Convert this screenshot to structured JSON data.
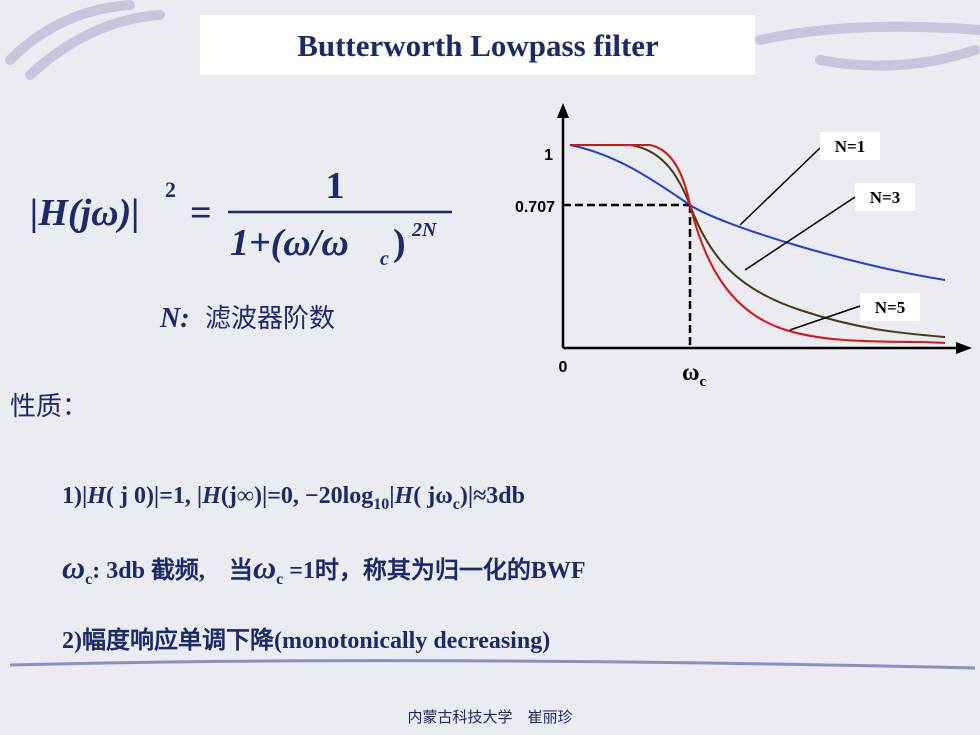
{
  "header": {
    "title": "Butterworth Lowpass filter"
  },
  "formula": {
    "lhs": "|H(jω)|",
    "power": "2",
    "equals": "=",
    "numerator": "1",
    "denominator": "1+(ω/ω",
    "denominator_sub": "c",
    "denominator_close": ")",
    "denominator_power": "2N"
  },
  "note": {
    "symbol": "N:",
    "text": "滤波器阶数"
  },
  "plot": {
    "y_top": "1",
    "y_mid": "0.707",
    "origin": "0",
    "x_mark": "ω",
    "x_mark_sub": "c",
    "labels": [
      "N=1",
      "N=3",
      "N=5"
    ]
  },
  "properties": {
    "heading": "性质：",
    "line1": [
      "1)|",
      "H",
      "( j 0)|=1,  |",
      "H",
      "(j∞)|=0, −20log",
      "10",
      "|",
      "H",
      "( jω",
      "c",
      ")|≈3db"
    ],
    "line2": [
      "ω",
      "c",
      ": 3db 截频,　当",
      "ω",
      "c",
      " =1时，称其为归一化的BWF"
    ],
    "line3": "2)幅度响应单调下降(monotonically decreasing)"
  },
  "footer": "内蒙古科技大学　崔丽珍"
}
